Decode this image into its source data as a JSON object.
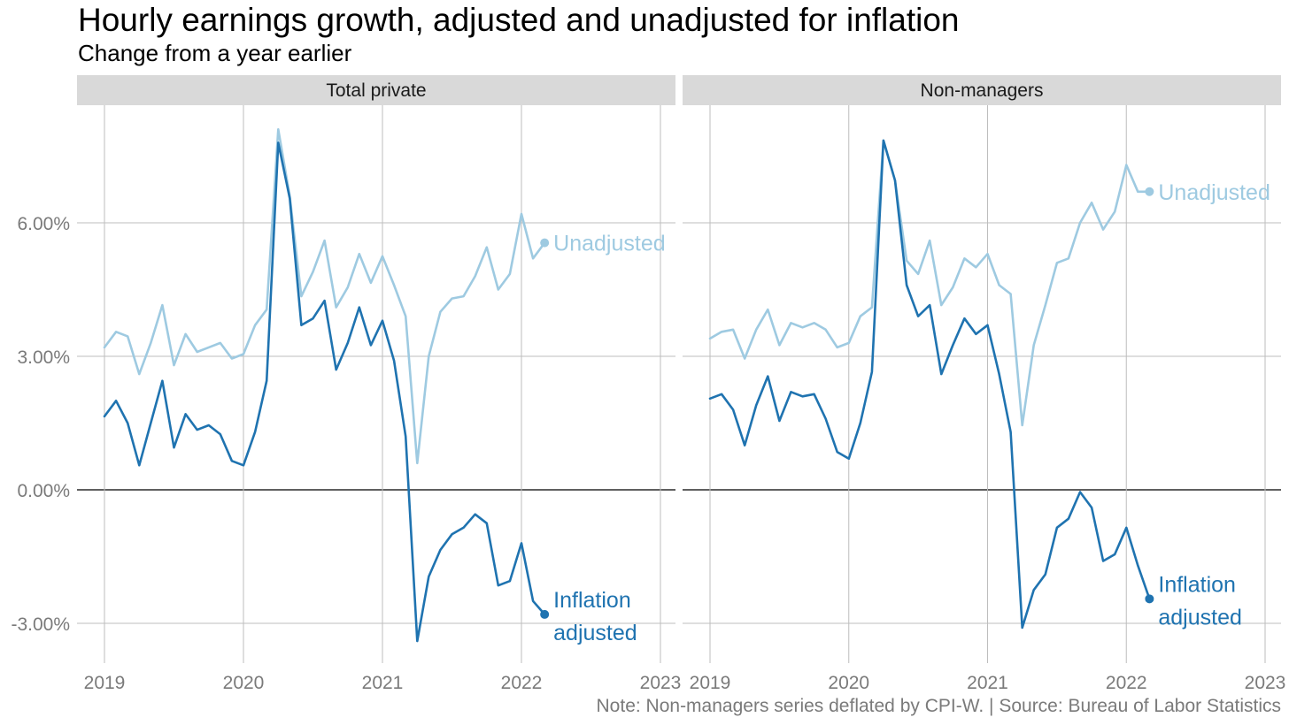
{
  "title": "Hourly earnings growth, adjusted and unadjusted for inflation",
  "subtitle": "Change from a year earlier",
  "note": "Note: Non-managers series deflated by CPI-W. | Source: Bureau of Labor Statistics",
  "colors": {
    "unadjusted": "#9ecae1",
    "adjusted": "#1f73b0",
    "strip": "#d9d9d9",
    "grid": "#bdbdbd",
    "zero": "#000000",
    "tick": "#7a7a7a"
  },
  "chart_data": [
    {
      "type": "line",
      "panel": "Total private",
      "x_ticks": [
        "2019",
        "2020",
        "2021",
        "2022",
        "2023"
      ],
      "y_ticks": [
        "-3.00%",
        "0.00%",
        "3.00%",
        "6.00%"
      ],
      "ylim": [
        -4.0,
        8.7
      ],
      "xlim": [
        "2018-10",
        "2023-03"
      ],
      "grid": true,
      "x": [
        "2019-01",
        "2019-02",
        "2019-03",
        "2019-04",
        "2019-05",
        "2019-06",
        "2019-07",
        "2019-08",
        "2019-09",
        "2019-10",
        "2019-11",
        "2019-12",
        "2020-01",
        "2020-02",
        "2020-03",
        "2020-04",
        "2020-05",
        "2020-06",
        "2020-07",
        "2020-08",
        "2020-09",
        "2020-10",
        "2020-11",
        "2020-12",
        "2021-01",
        "2021-02",
        "2021-03",
        "2021-04",
        "2021-05",
        "2021-06",
        "2021-07",
        "2021-08",
        "2021-09",
        "2021-10",
        "2021-11",
        "2021-12",
        "2022-01",
        "2022-02",
        "2022-03"
      ],
      "series": [
        {
          "name": "Unadjusted",
          "values": [
            3.2,
            3.55,
            3.45,
            2.6,
            3.3,
            4.15,
            2.8,
            3.5,
            3.1,
            3.2,
            3.3,
            2.95,
            3.05,
            3.7,
            4.05,
            8.1,
            6.6,
            4.35,
            4.9,
            5.6,
            4.1,
            4.55,
            5.3,
            4.65,
            5.25,
            4.6,
            3.9,
            0.6,
            3.0,
            4.0,
            4.3,
            4.35,
            4.8,
            5.45,
            4.5,
            4.85,
            6.2,
            5.2,
            5.55
          ]
        },
        {
          "name": "Inflation adjusted",
          "values": [
            1.65,
            2.0,
            1.5,
            0.55,
            1.5,
            2.45,
            0.95,
            1.7,
            1.35,
            1.45,
            1.25,
            0.65,
            0.55,
            1.3,
            2.45,
            7.8,
            6.55,
            3.7,
            3.85,
            4.25,
            2.7,
            3.3,
            4.1,
            3.25,
            3.8,
            2.9,
            1.2,
            -3.4,
            -1.95,
            -1.35,
            -1.0,
            -0.85,
            -0.55,
            -0.75,
            -2.15,
            -2.05,
            -1.2,
            -2.5,
            -2.8
          ]
        }
      ],
      "annotations": {
        "unadjusted": "Unadjusted",
        "adjusted_line1": "Inflation",
        "adjusted_line2": "adjusted"
      }
    },
    {
      "type": "line",
      "panel": "Non-managers",
      "x_ticks": [
        "2019",
        "2020",
        "2021",
        "2022",
        "2023"
      ],
      "y_ticks": [
        "-3.00%",
        "0.00%",
        "3.00%",
        "6.00%"
      ],
      "ylim": [
        -4.0,
        8.7
      ],
      "xlim": [
        "2018-10",
        "2023-03"
      ],
      "grid": true,
      "x": [
        "2019-01",
        "2019-02",
        "2019-03",
        "2019-04",
        "2019-05",
        "2019-06",
        "2019-07",
        "2019-08",
        "2019-09",
        "2019-10",
        "2019-11",
        "2019-12",
        "2020-01",
        "2020-02",
        "2020-03",
        "2020-04",
        "2020-05",
        "2020-06",
        "2020-07",
        "2020-08",
        "2020-09",
        "2020-10",
        "2020-11",
        "2020-12",
        "2021-01",
        "2021-02",
        "2021-03",
        "2021-04",
        "2021-05",
        "2021-06",
        "2021-07",
        "2021-08",
        "2021-09",
        "2021-10",
        "2021-11",
        "2021-12",
        "2022-01",
        "2022-02",
        "2022-03"
      ],
      "series": [
        {
          "name": "Unadjusted",
          "values": [
            3.4,
            3.55,
            3.6,
            2.95,
            3.6,
            4.05,
            3.25,
            3.75,
            3.65,
            3.75,
            3.6,
            3.2,
            3.3,
            3.9,
            4.1,
            7.85,
            6.95,
            5.15,
            4.85,
            5.6,
            4.15,
            4.55,
            5.2,
            5.0,
            5.3,
            4.6,
            4.4,
            1.45,
            3.25,
            4.15,
            5.1,
            5.2,
            6.0,
            6.45,
            5.85,
            6.25,
            7.3,
            6.7,
            6.7
          ]
        },
        {
          "name": "Inflation adjusted",
          "values": [
            2.05,
            2.15,
            1.8,
            1.0,
            1.9,
            2.55,
            1.55,
            2.2,
            2.1,
            2.15,
            1.6,
            0.85,
            0.7,
            1.5,
            2.65,
            7.85,
            6.95,
            4.6,
            3.9,
            4.15,
            2.6,
            3.25,
            3.85,
            3.5,
            3.7,
            2.6,
            1.3,
            -3.1,
            -2.25,
            -1.9,
            -0.85,
            -0.65,
            -0.05,
            -0.4,
            -1.6,
            -1.45,
            -0.85,
            -1.7,
            -2.45
          ]
        }
      ],
      "annotations": {
        "unadjusted": "Unadjusted",
        "adjusted_line1": "Inflation",
        "adjusted_line2": "adjusted"
      }
    }
  ]
}
